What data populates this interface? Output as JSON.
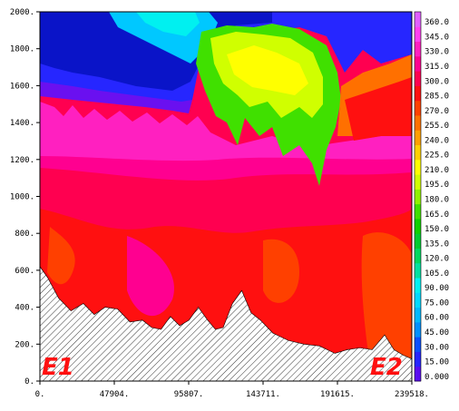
{
  "chart_data": {
    "type": "heatmap",
    "title": "",
    "xlabel": "",
    "ylabel": "",
    "xlim": [
      0,
      239518
    ],
    "ylim": [
      0,
      2000
    ],
    "x_tick_labels": [
      "0.",
      "47904.",
      "95807.",
      "143711.",
      "191615.",
      "239518."
    ],
    "y_tick_labels": [
      "0.",
      "200.",
      "400.",
      "600.",
      "800.",
      "1000.",
      "1200.",
      "1400.",
      "1600.",
      "1800.",
      "2000."
    ],
    "colorbar": {
      "levels": [
        "0.000",
        "15.00",
        "30.00",
        "45.00",
        "60.00",
        "75.00",
        "90.00",
        "105.0",
        "120.0",
        "135.0",
        "150.0",
        "165.0",
        "180.0",
        "195.0",
        "210.0",
        "225.0",
        "240.0",
        "255.0",
        "270.0",
        "285.0",
        "300.0",
        "315.0",
        "330.0",
        "345.0",
        "360.0"
      ],
      "colors": [
        "#5a0cf0",
        "#2626ff",
        "#0a50ff",
        "#0090ff",
        "#00b8ff",
        "#00d8ff",
        "#00f0f0",
        "#00e0a0",
        "#00d860",
        "#00cc30",
        "#10d000",
        "#40e000",
        "#90f000",
        "#d0ff00",
        "#ffff00",
        "#ffd000",
        "#ffa000",
        "#ff7000",
        "#ff4000",
        "#ff1010",
        "#ff0050",
        "#ff0090",
        "#ff20c0",
        "#ff40f0",
        "#e060ff"
      ]
    },
    "terrain": {
      "x": [
        0,
        5000,
        12000,
        20000,
        28000,
        35000,
        42000,
        50000,
        58000,
        66000,
        72000,
        78000,
        84000,
        90000,
        96000,
        102000,
        108000,
        113000,
        118000,
        124000,
        130000,
        136000,
        142000,
        150000,
        160000,
        170000,
        180000,
        190000,
        198000,
        206000,
        214000,
        222000,
        228000,
        234000,
        239518
      ],
      "y": [
        620,
        560,
        450,
        380,
        420,
        360,
        400,
        390,
        320,
        330,
        290,
        280,
        350,
        300,
        330,
        400,
        330,
        280,
        290,
        420,
        490,
        370,
        330,
        260,
        220,
        200,
        190,
        150,
        170,
        180,
        170,
        250,
        170,
        140,
        120
      ]
    },
    "annotations": [
      "E1",
      "E2"
    ]
  }
}
